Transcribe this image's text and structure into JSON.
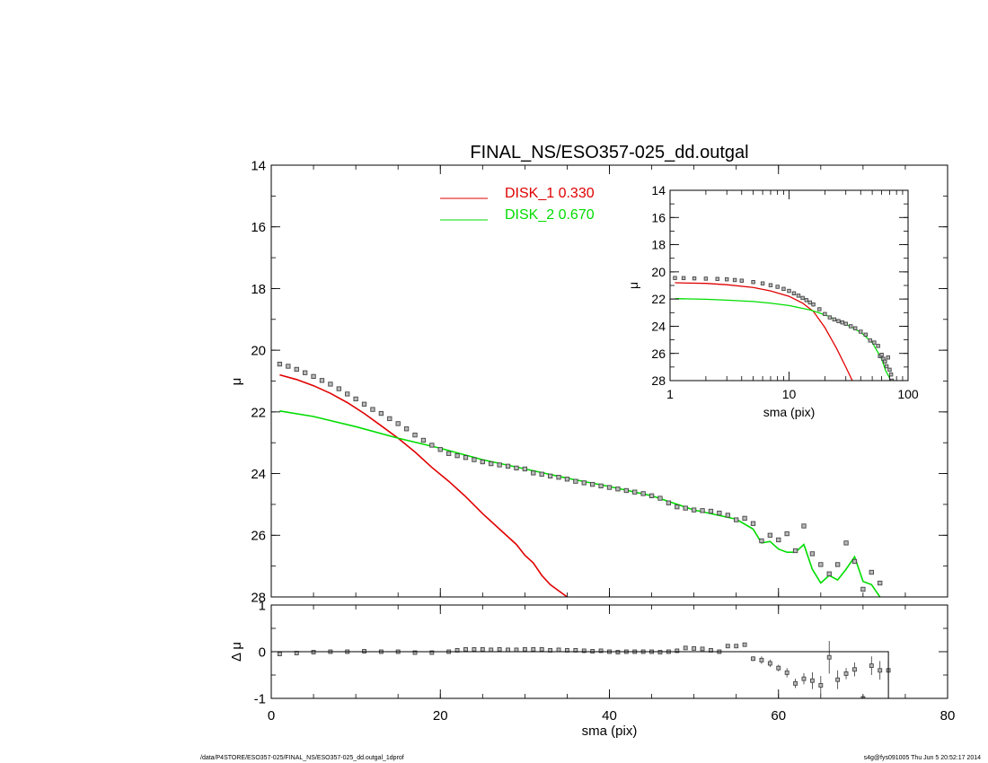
{
  "chart_data": [
    {
      "type": "scatter",
      "title": "FINAL_NS/ESO357-025_dd.outgal",
      "xlabel": "",
      "ylabel": "μ",
      "xlim": [
        0,
        80
      ],
      "ylim": [
        14,
        28
      ],
      "y_inverted": true,
      "yticks": [
        "14",
        "16",
        "18",
        "20",
        "22",
        "24",
        "26",
        "28"
      ],
      "legend_placement": "top-center",
      "series": [
        {
          "name": "DISK_1  0.330",
          "kind": "line",
          "color": "#e00000",
          "x": [
            1,
            3,
            5,
            7,
            9,
            11,
            13,
            15,
            17,
            19,
            21,
            23,
            25,
            27,
            29,
            30,
            31,
            32,
            33,
            34,
            35
          ],
          "y": [
            20.8,
            20.95,
            21.15,
            21.4,
            21.7,
            22.05,
            22.45,
            22.85,
            23.3,
            23.8,
            24.25,
            24.75,
            25.3,
            25.8,
            26.3,
            26.65,
            26.9,
            27.3,
            27.6,
            27.8,
            28.0
          ]
        },
        {
          "name": "DISK_2  0.670",
          "kind": "line",
          "color": "#00dd00",
          "x": [
            1,
            5,
            10,
            15,
            20,
            25,
            30,
            35,
            40,
            45,
            50,
            55,
            57,
            58,
            59,
            60,
            61,
            62,
            63,
            64,
            65,
            66,
            67,
            68,
            69,
            70,
            71,
            72
          ],
          "y": [
            21.97,
            22.15,
            22.48,
            22.85,
            23.18,
            23.55,
            23.85,
            24.15,
            24.42,
            24.72,
            25.18,
            25.48,
            25.8,
            26.25,
            26.2,
            26.45,
            26.55,
            26.55,
            26.3,
            27.1,
            27.55,
            27.3,
            27.45,
            27.1,
            26.7,
            27.5,
            27.6,
            28.0
          ]
        },
        {
          "name": "",
          "kind": "points",
          "color": "#444444",
          "x": [
            1,
            2,
            3,
            4,
            5,
            6,
            7,
            8,
            9,
            10,
            11,
            12,
            13,
            14,
            15,
            16,
            17,
            18,
            19,
            20,
            21,
            22,
            23,
            24,
            25,
            26,
            27,
            28,
            29,
            30,
            31,
            32,
            33,
            34,
            35,
            36,
            37,
            38,
            39,
            40,
            41,
            42,
            43,
            44,
            45,
            46,
            47,
            48,
            49,
            50,
            51,
            52,
            53,
            54,
            55,
            56,
            57,
            58,
            59,
            60,
            61,
            62,
            63,
            64,
            65,
            66,
            67,
            68,
            69,
            70,
            71,
            72,
            73
          ],
          "y": [
            20.45,
            20.52,
            20.62,
            20.73,
            20.85,
            20.98,
            21.1,
            21.25,
            21.42,
            21.58,
            21.75,
            21.92,
            22.05,
            22.22,
            22.38,
            22.55,
            22.75,
            22.92,
            23.08,
            23.22,
            23.35,
            23.42,
            23.48,
            23.55,
            23.62,
            23.68,
            23.72,
            23.76,
            23.82,
            23.85,
            23.98,
            24.02,
            24.08,
            24.12,
            24.18,
            24.25,
            24.3,
            24.35,
            24.4,
            24.45,
            24.5,
            24.55,
            24.6,
            24.65,
            24.72,
            24.8,
            24.95,
            25.08,
            25.12,
            25.18,
            25.2,
            25.22,
            25.28,
            25.35,
            25.5,
            25.45,
            25.62,
            26.18,
            26.0,
            26.15,
            25.95,
            26.5,
            25.7,
            26.6,
            26.95,
            27.25,
            26.95,
            26.25,
            26.85,
            27.75,
            27.2,
            27.55,
            28.3
          ]
        }
      ]
    },
    {
      "type": "scatter",
      "title": "",
      "xlabel": "sma (pix)",
      "ylabel": "Δ μ",
      "xlim": [
        0,
        80
      ],
      "ylim": [
        -1,
        1
      ],
      "xticks": [
        "0",
        "20",
        "40",
        "60",
        "80"
      ],
      "yticks": [
        "1",
        "0",
        "-1"
      ],
      "reference_line": 0,
      "reference_line_end": 73,
      "series": [
        {
          "name": "",
          "kind": "points",
          "color": "#444444",
          "x": [
            1,
            3,
            5,
            7,
            9,
            11,
            13,
            15,
            17,
            19,
            21,
            22,
            23,
            24,
            25,
            26,
            27,
            28,
            29,
            30,
            31,
            32,
            33,
            34,
            35,
            36,
            37,
            38,
            39,
            40,
            41,
            42,
            43,
            44,
            45,
            46,
            47,
            48,
            49,
            50,
            51,
            52,
            53,
            54,
            55,
            56,
            57,
            58,
            59,
            60,
            61,
            62,
            63,
            64,
            65,
            66,
            67,
            68,
            69,
            70,
            71,
            72,
            73
          ],
          "y": [
            -0.05,
            -0.03,
            -0.01,
            0.0,
            0.0,
            0.01,
            0.0,
            0.0,
            -0.02,
            -0.02,
            0.0,
            0.03,
            0.05,
            0.05,
            0.05,
            0.04,
            0.05,
            0.04,
            0.04,
            0.05,
            0.05,
            0.05,
            0.03,
            0.04,
            0.03,
            0.03,
            0.02,
            0.01,
            0.02,
            0.0,
            -0.01,
            0.0,
            0.0,
            0.0,
            0.0,
            -0.01,
            0.0,
            0.02,
            0.08,
            0.07,
            0.06,
            0.03,
            0.0,
            0.12,
            0.12,
            0.15,
            -0.15,
            -0.18,
            -0.25,
            -0.35,
            -0.45,
            -0.68,
            -0.58,
            -0.62,
            -0.72,
            -0.12,
            -0.6,
            -0.47,
            -0.38,
            -1.0,
            -0.3,
            -0.4,
            -0.4
          ],
          "err": [
            0,
            0,
            0,
            0,
            0,
            0,
            0,
            0,
            0,
            0,
            0,
            0,
            0,
            0,
            0,
            0,
            0,
            0,
            0,
            0,
            0,
            0,
            0,
            0,
            0,
            0,
            0,
            0,
            0,
            0,
            0,
            0,
            0,
            0,
            0,
            0,
            0,
            0,
            0,
            0,
            0,
            0,
            0,
            0,
            0,
            0.04,
            0.05,
            0.08,
            0.08,
            0.07,
            0.1,
            0.1,
            0.12,
            0.18,
            0.2,
            0.35,
            0.2,
            0.12,
            0.15,
            0.0,
            0.2,
            0.2,
            0.2
          ]
        }
      ]
    },
    {
      "type": "scatter",
      "title": "",
      "xlabel": "sma (pix)",
      "ylabel": "μ",
      "xscale": "log",
      "xlim": [
        1,
        100
      ],
      "ylim": [
        14,
        28
      ],
      "y_inverted": true,
      "xticks": [
        "1",
        "10",
        "100"
      ],
      "yticks": [
        "14",
        "16",
        "18",
        "20",
        "22",
        "24",
        "26",
        "28"
      ],
      "series": [
        {
          "name": "",
          "kind": "line",
          "color": "#e00000",
          "x": [
            1.1,
            2,
            3,
            5,
            7,
            10,
            13,
            16,
            20,
            25,
            30,
            34
          ],
          "y": [
            20.8,
            20.85,
            20.95,
            21.15,
            21.4,
            21.8,
            22.3,
            22.9,
            24.1,
            25.6,
            27.0,
            28.0
          ]
        },
        {
          "name": "",
          "kind": "line",
          "color": "#00dd00",
          "x": [
            1.1,
            2,
            3,
            5,
            7,
            10,
            15,
            20,
            30,
            40,
            50,
            60,
            65,
            70
          ],
          "y": [
            21.97,
            22.02,
            22.08,
            22.18,
            22.3,
            22.48,
            22.8,
            23.15,
            23.85,
            24.45,
            25.2,
            26.4,
            27.3,
            27.8
          ]
        },
        {
          "name": "",
          "kind": "points",
          "color": "#444444",
          "x": [
            1.1,
            1.3,
            1.6,
            2,
            2.5,
            3,
            3.5,
            4,
            5,
            6,
            7,
            8,
            9,
            10,
            11,
            12,
            13,
            14,
            15,
            16,
            18,
            20,
            22,
            24,
            26,
            28,
            30,
            33,
            36,
            40,
            44,
            48,
            52,
            56,
            58,
            60,
            62,
            64,
            66,
            68,
            70,
            72,
            73
          ],
          "y": [
            20.45,
            20.46,
            20.48,
            20.5,
            20.52,
            20.55,
            20.6,
            20.65,
            20.75,
            20.85,
            20.98,
            21.1,
            21.25,
            21.4,
            21.58,
            21.75,
            21.92,
            22.08,
            22.25,
            22.4,
            22.75,
            23.1,
            23.35,
            23.5,
            23.62,
            23.72,
            23.82,
            24.0,
            24.15,
            24.4,
            24.62,
            25.05,
            25.2,
            25.45,
            26.2,
            26.1,
            26.4,
            26.6,
            26.95,
            26.3,
            27.2,
            27.55,
            28.0
          ]
        }
      ]
    }
  ],
  "footer": {
    "left": "/data/P4STORE/ESO357-025/FINAL_NS/ESO357-025_dd.outgal_1dprof",
    "right": "s4g@fys091005  Thu Jun  5 20:52:17 2014"
  }
}
